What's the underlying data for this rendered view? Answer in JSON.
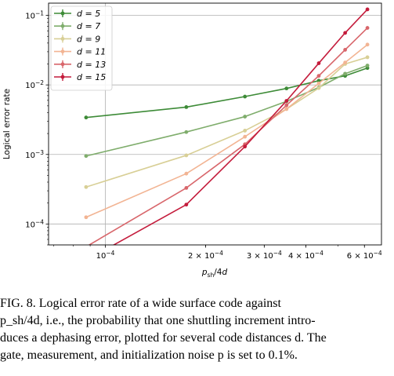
{
  "chart_data": {
    "type": "line",
    "xlabel": "p_sh/4d",
    "ylabel": "Logical error rate",
    "xscale": "log",
    "yscale": "log",
    "xlim": [
      6.75e-05,
      0.000675
    ],
    "ylim": [
      5e-05,
      0.15
    ],
    "grid": true,
    "legend_placement": "top-left",
    "x_ticks": [
      {
        "value": 0.0001,
        "label": "10^-4"
      },
      {
        "value": 0.0002,
        "label": "2 × 10^-4"
      },
      {
        "value": 0.0003,
        "label": "3 × 10^-4"
      },
      {
        "value": 0.0004,
        "label": "4 × 10^-4"
      },
      {
        "value": 0.0006,
        "label": "6 × 10^-4"
      }
    ],
    "y_ticks": [
      {
        "value": 0.0001,
        "label": "10^-4"
      },
      {
        "value": 0.001,
        "label": "10^-3"
      },
      {
        "value": 0.01,
        "label": "10^-2"
      },
      {
        "value": 0.1,
        "label": "10^-1"
      }
    ],
    "x": [
      8.75e-05,
      0.000175,
      0.0002625,
      0.00035,
      0.0004375,
      0.000525,
      0.0006125
    ],
    "series": [
      {
        "name": "d = 5",
        "color": "#3d8b37",
        "values": [
          0.0034,
          0.0048,
          0.0068,
          0.0089,
          0.0115,
          0.0135,
          0.0175
        ]
      },
      {
        "name": "d = 7",
        "color": "#7fad6c",
        "values": [
          0.00095,
          0.0021,
          0.0035,
          0.0058,
          0.0092,
          0.0145,
          0.019
        ]
      },
      {
        "name": "d = 9",
        "color": "#d8cf96",
        "values": [
          0.00034,
          0.00097,
          0.0022,
          0.0045,
          0.009,
          0.02,
          0.025
        ]
      },
      {
        "name": "d = 11",
        "color": "#f2b493",
        "values": [
          0.000125,
          0.00053,
          0.0018,
          0.0045,
          0.0105,
          0.021,
          0.038
        ]
      },
      {
        "name": "d = 13",
        "color": "#d8666b",
        "values": [
          4.7e-05,
          0.00033,
          0.0014,
          0.0051,
          0.0135,
          0.032,
          0.066
        ]
      },
      {
        "name": "d = 15",
        "color": "#c41c3c",
        "values": [
          3e-05,
          0.00019,
          0.0013,
          0.0059,
          0.0205,
          0.056,
          0.122
        ]
      }
    ]
  },
  "caption": {
    "lines": [
      "FIG. 8.  Logical error rate of a wide surface code against",
      "p_sh/4d, i.e., the probability that one shuttling increment intro-",
      "duces a dephasing error, plotted for several code distances d. The",
      "gate, measurement, and initialization noise p is set to 0.1%."
    ]
  }
}
